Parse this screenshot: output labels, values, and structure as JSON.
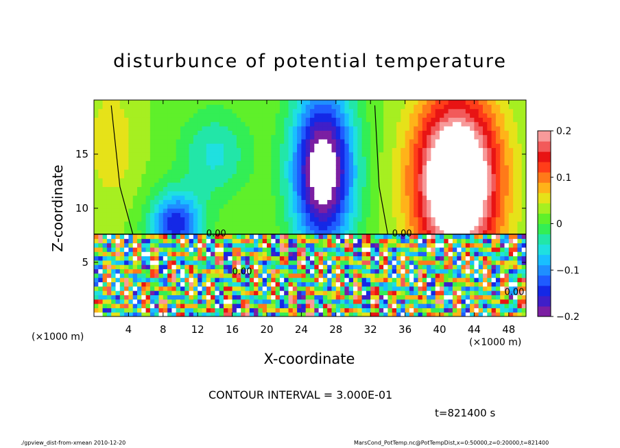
{
  "chart_data": {
    "type": "heatmap",
    "title": "disturbunce of potential temperature",
    "xlabel": "X-coordinate",
    "ylabel": "Z-coordinate",
    "x_unit": "(×1000 m)",
    "xlim": [
      0,
      50
    ],
    "ylim": [
      0,
      20
    ],
    "x_ticks": [
      4,
      8,
      12,
      16,
      20,
      24,
      28,
      32,
      36,
      40,
      44,
      48
    ],
    "y_ticks": [
      5,
      10,
      15
    ],
    "colorbar": {
      "range": [
        -0.2,
        0.2
      ],
      "tick_labels": [
        "0.2",
        "0.1",
        "0",
        "−0.1",
        "−0.2"
      ],
      "tick_values": [
        0.2,
        0.1,
        0,
        -0.1,
        -0.2
      ],
      "colors": [
        "#7b1fa2",
        "#3f1fc8",
        "#1428e6",
        "#1f5cff",
        "#1f8fff",
        "#19bfff",
        "#1fe0e0",
        "#22e6a8",
        "#33ee55",
        "#5ff02a",
        "#a6ef21",
        "#e6e219",
        "#ffb319",
        "#ff7a19",
        "#ff3d19",
        "#e81414",
        "#f25a5a",
        "#f79a9a"
      ]
    },
    "contour_labels": [
      "0.00",
      "0.00",
      "0.00",
      "0.00"
    ],
    "notes": {
      "contour_interval": "CONTOUR INTERVAL = 3.000E-01",
      "time": "t=821400 s"
    },
    "features": [
      {
        "name": "cold anomaly",
        "x_center": 26,
        "z_top": 19,
        "value": -0.2
      },
      {
        "name": "warm anomaly",
        "x_center": 42,
        "z_top": 19,
        "value": 0.2
      },
      {
        "name": "weak cold anomaly",
        "x_center": 9,
        "z_top": 11,
        "value": -0.15
      }
    ]
  },
  "footer": {
    "left": "./gpview_dist-from-xmean  2010-12-20",
    "right": "MarsCond_PotTemp.nc@PotTempDist,x=0:50000,z=0:20000,t=821400"
  }
}
